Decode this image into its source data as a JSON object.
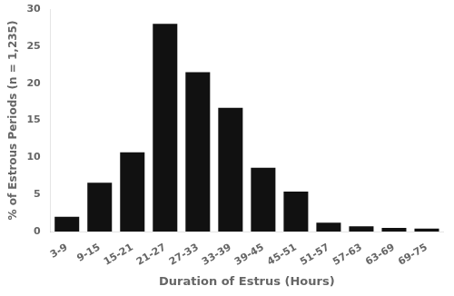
{
  "chart_data": {
    "type": "bar",
    "categories": [
      "3-9",
      "9-15",
      "15-21",
      "21-27",
      "27-33",
      "33-39",
      "39-45",
      "45-51",
      "51-57",
      "57-63",
      "63-69",
      "69-75"
    ],
    "values": [
      2.0,
      6.6,
      10.7,
      28.0,
      21.5,
      16.7,
      8.6,
      5.4,
      1.2,
      0.7,
      0.5,
      0.4
    ],
    "color": "#111111",
    "xlabel": "Duration of Estrus (Hours)",
    "ylabel": "% of Estrous Periods (n = 1,235)",
    "ylim": [
      0,
      30
    ],
    "yticks": [
      0,
      5,
      10,
      15,
      20,
      25,
      30
    ],
    "grid": false
  }
}
